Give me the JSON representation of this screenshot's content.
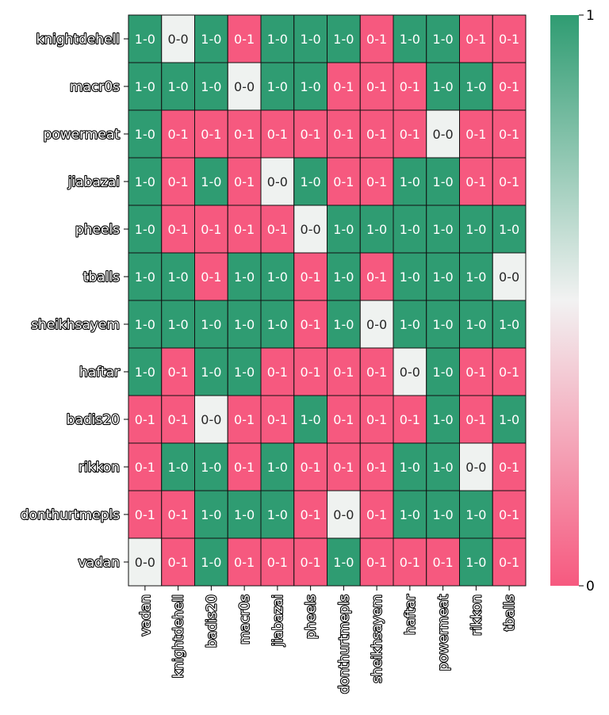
{
  "chart_data": {
    "type": "heatmap",
    "rows": [
      "knightdehell",
      "macr0s",
      "powermeat",
      "jiabazai",
      "pheels",
      "tballs",
      "sheikhsayem",
      "haftar",
      "badis20",
      "rikkon",
      "donthurtmepls",
      "vadan"
    ],
    "columns": [
      "vadan",
      "knightdehell",
      "badis20",
      "macr0s",
      "jiabazai",
      "pheels",
      "donthurtmepls",
      "sheikhsayem",
      "haftar",
      "powermeat",
      "rikkon",
      "tballs"
    ],
    "cells": [
      [
        "1-0",
        "0-0",
        "1-0",
        "0-1",
        "1-0",
        "1-0",
        "1-0",
        "0-1",
        "1-0",
        "1-0",
        "0-1",
        "0-1"
      ],
      [
        "1-0",
        "1-0",
        "1-0",
        "0-0",
        "1-0",
        "1-0",
        "0-1",
        "0-1",
        "0-1",
        "1-0",
        "1-0",
        "0-1"
      ],
      [
        "1-0",
        "0-1",
        "0-1",
        "0-1",
        "0-1",
        "0-1",
        "0-1",
        "0-1",
        "0-1",
        "0-0",
        "0-1",
        "0-1"
      ],
      [
        "1-0",
        "0-1",
        "1-0",
        "0-1",
        "0-0",
        "1-0",
        "0-1",
        "0-1",
        "1-0",
        "1-0",
        "0-1",
        "0-1"
      ],
      [
        "1-0",
        "0-1",
        "0-1",
        "0-1",
        "0-1",
        "0-0",
        "1-0",
        "1-0",
        "1-0",
        "1-0",
        "1-0",
        "1-0"
      ],
      [
        "1-0",
        "1-0",
        "0-1",
        "1-0",
        "1-0",
        "0-1",
        "1-0",
        "0-1",
        "1-0",
        "1-0",
        "1-0",
        "0-0"
      ],
      [
        "1-0",
        "1-0",
        "1-0",
        "1-0",
        "1-0",
        "0-1",
        "1-0",
        "0-0",
        "1-0",
        "1-0",
        "1-0",
        "1-0"
      ],
      [
        "1-0",
        "0-1",
        "1-0",
        "1-0",
        "0-1",
        "0-1",
        "0-1",
        "0-1",
        "0-0",
        "1-0",
        "0-1",
        "0-1"
      ],
      [
        "0-1",
        "0-1",
        "0-0",
        "0-1",
        "0-1",
        "1-0",
        "0-1",
        "0-1",
        "0-1",
        "1-0",
        "0-1",
        "1-0"
      ],
      [
        "0-1",
        "1-0",
        "1-0",
        "0-1",
        "1-0",
        "0-1",
        "0-1",
        "0-1",
        "1-0",
        "1-0",
        "0-0",
        "0-1"
      ],
      [
        "0-1",
        "0-1",
        "1-0",
        "1-0",
        "1-0",
        "0-1",
        "0-0",
        "0-1",
        "1-0",
        "1-0",
        "1-0",
        "0-1"
      ],
      [
        "0-0",
        "0-1",
        "1-0",
        "0-1",
        "0-1",
        "0-1",
        "1-0",
        "0-1",
        "0-1",
        "0-1",
        "1-0",
        "0-1"
      ]
    ],
    "value_map": {
      "1-0": 1,
      "0-1": 0,
      "0-0": 0.5
    },
    "colorbar": {
      "min": 0,
      "max": 1,
      "ticks": [
        "0",
        "1"
      ],
      "colors": {
        "low": "#f6597f",
        "mid": "#f2f2f2",
        "high": "#2f9c72"
      }
    },
    "colors": {
      "win": "#2f9c72",
      "loss": "#f6597f",
      "draw": "#eff2f0",
      "grid": "#111111"
    },
    "grid": true,
    "title": "",
    "xlabel": "",
    "ylabel": ""
  }
}
